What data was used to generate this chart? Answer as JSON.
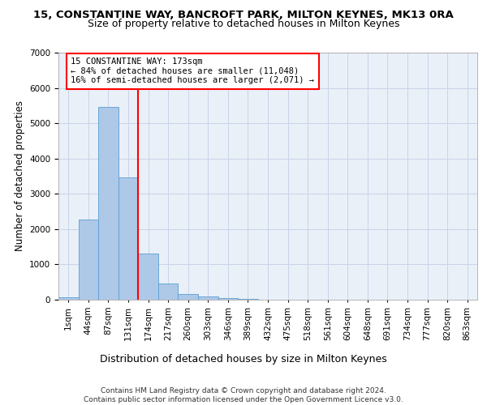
{
  "title": "15, CONSTANTINE WAY, BANCROFT PARK, MILTON KEYNES, MK13 0RA",
  "subtitle": "Size of property relative to detached houses in Milton Keynes",
  "xlabel": "Distribution of detached houses by size in Milton Keynes",
  "ylabel": "Number of detached properties",
  "footer_line1": "Contains HM Land Registry data © Crown copyright and database right 2024.",
  "footer_line2": "Contains public sector information licensed under the Open Government Licence v3.0.",
  "bar_labels": [
    "1sqm",
    "44sqm",
    "87sqm",
    "131sqm",
    "174sqm",
    "217sqm",
    "260sqm",
    "303sqm",
    "346sqm",
    "389sqm",
    "432sqm",
    "475sqm",
    "518sqm",
    "561sqm",
    "604sqm",
    "648sqm",
    "691sqm",
    "734sqm",
    "777sqm",
    "820sqm",
    "863sqm"
  ],
  "bar_values": [
    75,
    2270,
    5460,
    3460,
    1310,
    470,
    155,
    90,
    55,
    30,
    0,
    0,
    0,
    0,
    0,
    0,
    0,
    0,
    0,
    0,
    0
  ],
  "bar_color": "#aec8e8",
  "bar_edge_color": "#5a9fd4",
  "vline_x": 4,
  "vline_color": "red",
  "annotation_line1": "15 CONSTANTINE WAY: 173sqm",
  "annotation_line2": "← 84% of detached houses are smaller (11,048)",
  "annotation_line3": "16% of semi-detached houses are larger (2,071) →",
  "annotation_box_color": "white",
  "annotation_box_edge": "red",
  "ylim": [
    0,
    7000
  ],
  "yticks": [
    0,
    1000,
    2000,
    3000,
    4000,
    5000,
    6000,
    7000
  ],
  "grid_color": "#c8d4e8",
  "background_color": "#eaf0f8",
  "title_fontsize": 9.5,
  "subtitle_fontsize": 9,
  "xlabel_fontsize": 9,
  "ylabel_fontsize": 8.5,
  "tick_fontsize": 7.5,
  "annotation_fontsize": 7.5,
  "footer_fontsize": 6.5
}
